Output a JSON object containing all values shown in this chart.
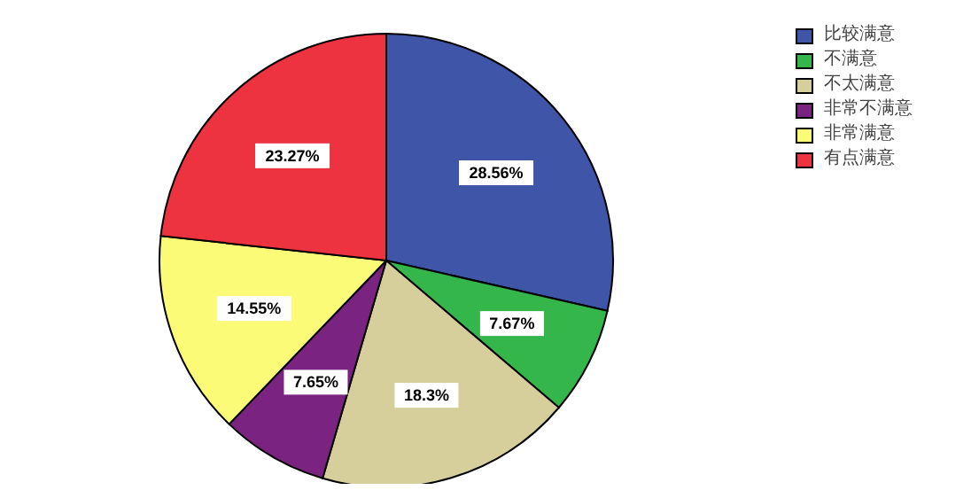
{
  "chart_data": {
    "type": "pie",
    "categories": [
      "比较满意",
      "不满意",
      "不太满意",
      "非常不满意",
      "非常满意",
      "有点满意"
    ],
    "values": [
      28.56,
      7.67,
      18.3,
      7.65,
      14.55,
      23.27
    ],
    "value_labels": [
      "28.56%",
      "7.67%",
      "18.3%",
      "7.65%",
      "14.55%",
      "23.27%"
    ],
    "colors": [
      "#3f56a8",
      "#34b64a",
      "#d6cf9c",
      "#7a2380",
      "#fbfb78",
      "#ee3340"
    ],
    "legend": "top right"
  }
}
